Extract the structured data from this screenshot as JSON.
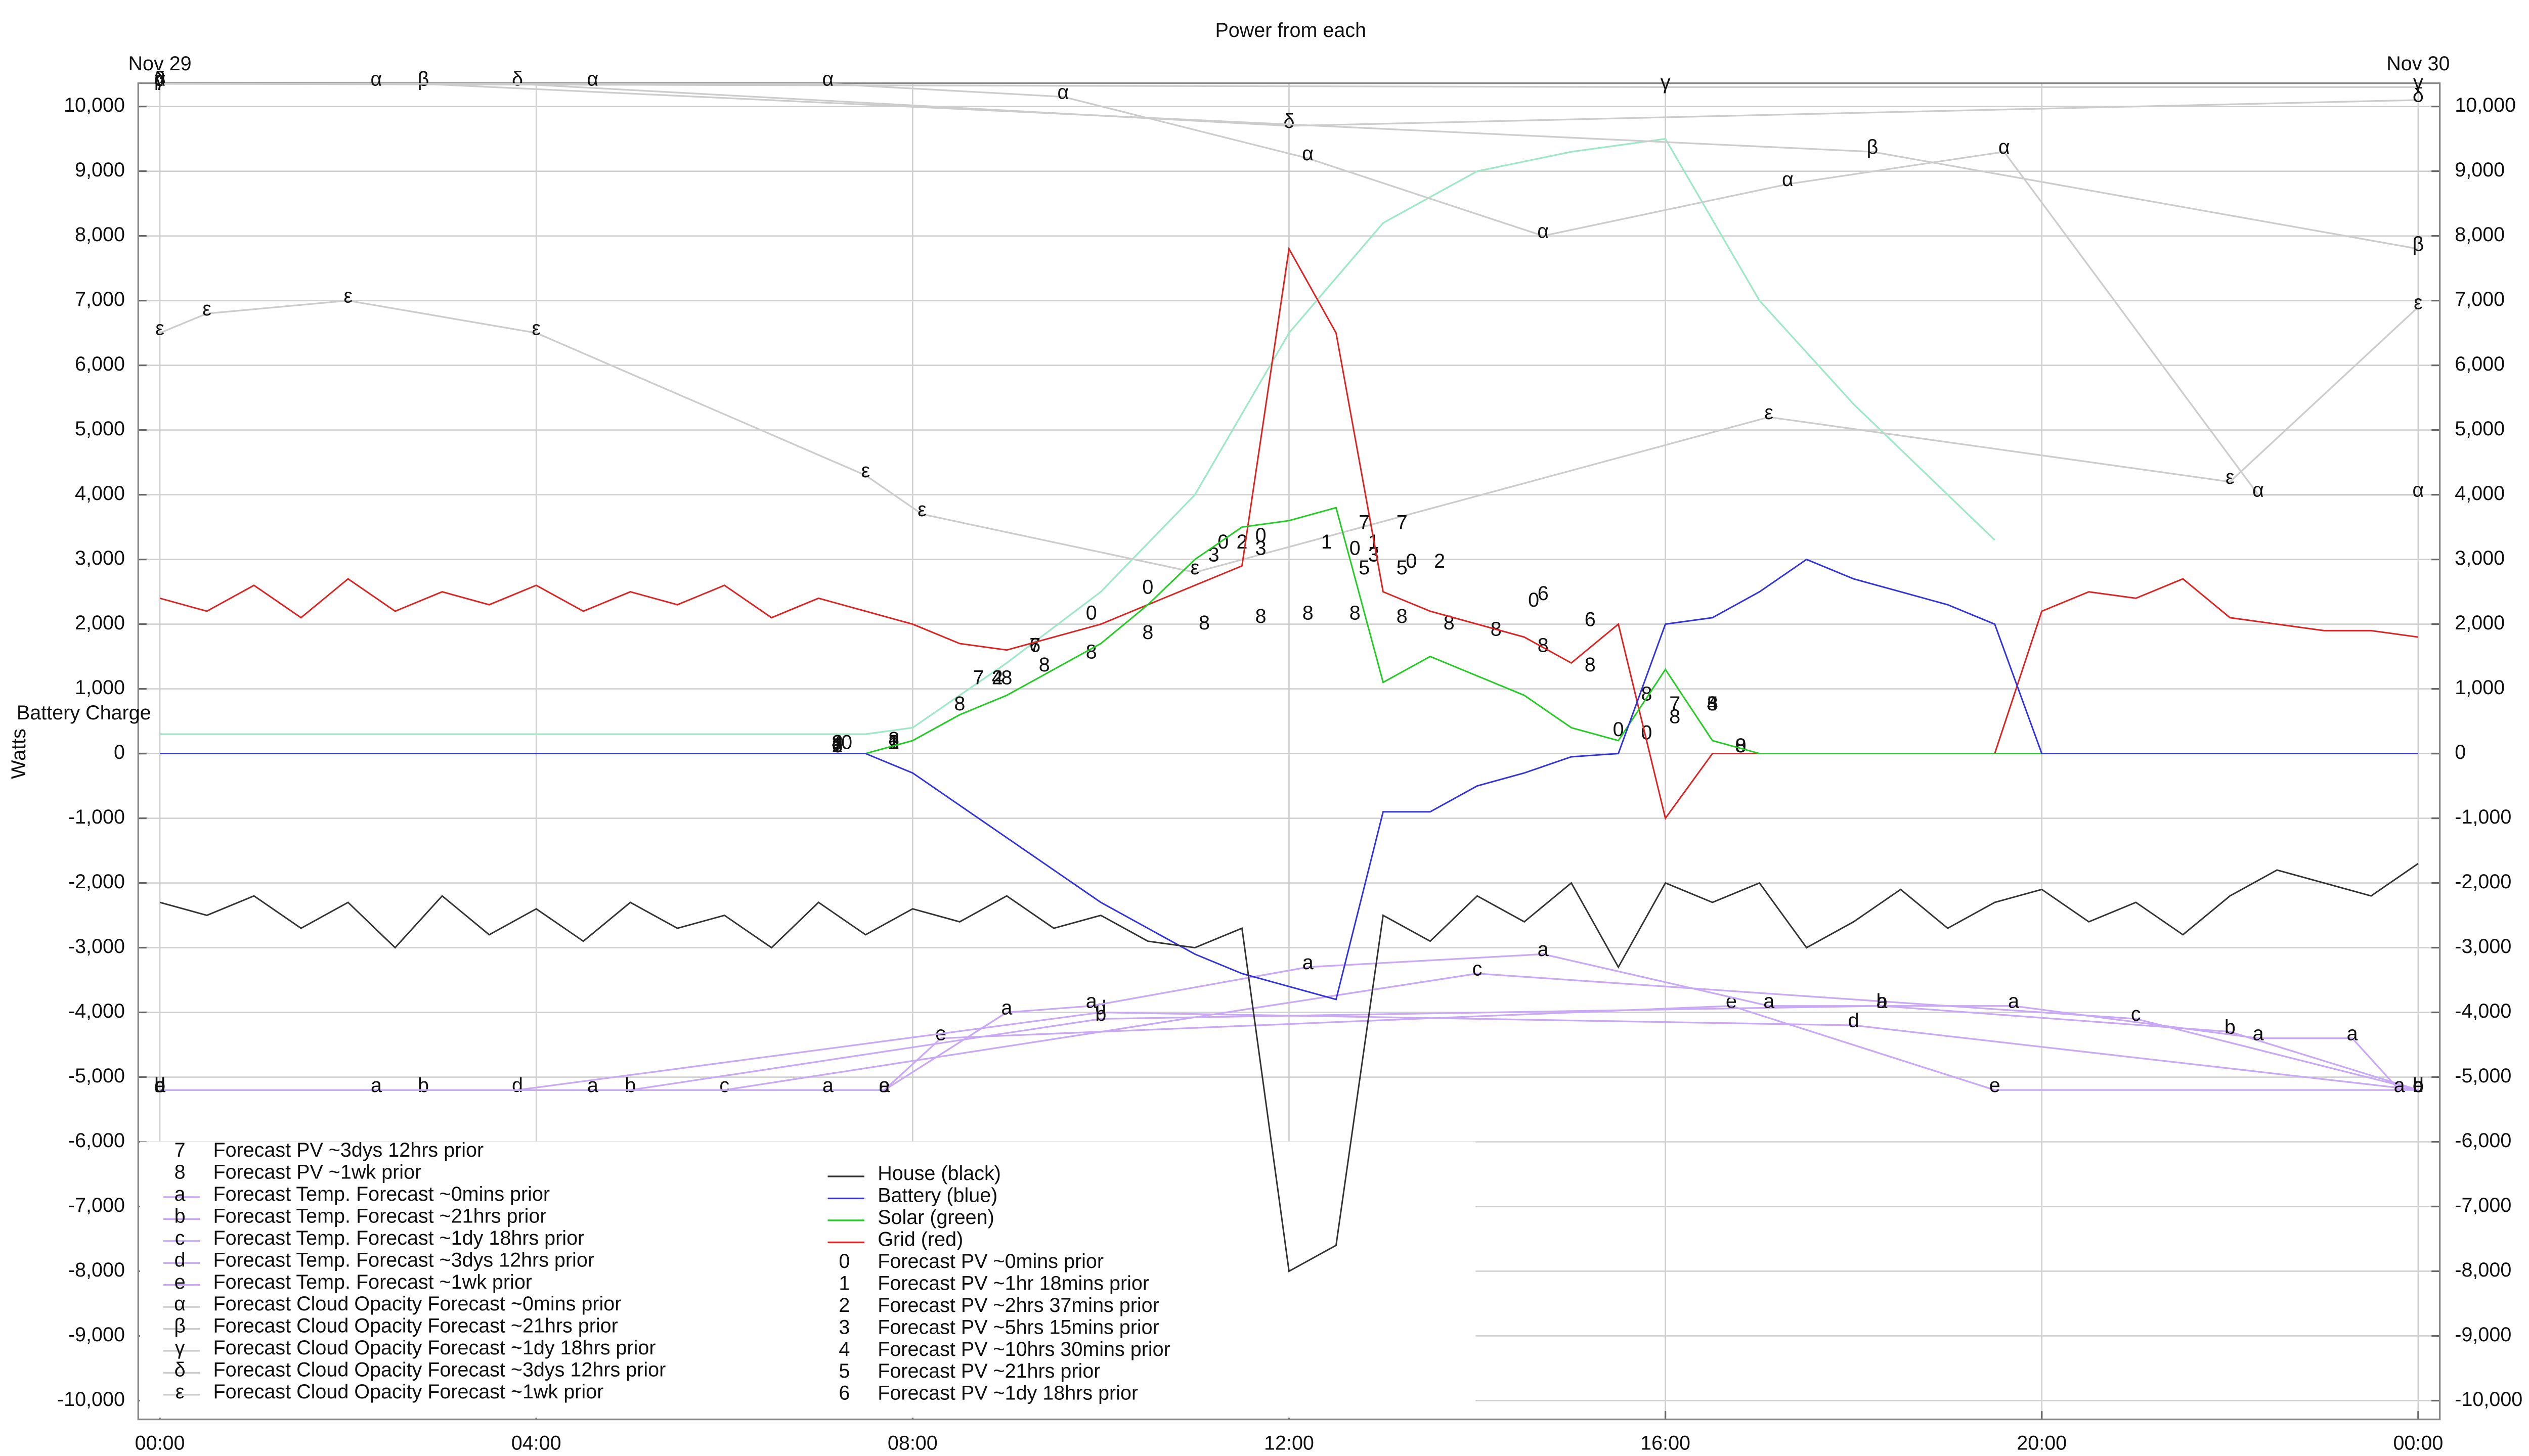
{
  "chart_data": {
    "type": "line",
    "title": "Power from each",
    "ylabel": "Watts",
    "annotations": [
      {
        "text": "Nov 29",
        "x": 0
      },
      {
        "text": "Nov 30",
        "x": 24
      }
    ],
    "xlim": [
      -0.23,
      24.23
    ],
    "xticks": [
      {
        "value": 0,
        "label": "00:00"
      },
      {
        "value": 4,
        "label": "04:00"
      },
      {
        "value": 8,
        "label": "08:00"
      },
      {
        "value": 12,
        "label": "12:00"
      },
      {
        "value": 16,
        "label": "16:00"
      },
      {
        "value": 20,
        "label": "20:00"
      },
      {
        "value": 24,
        "label": "00:00"
      }
    ],
    "ylim": [
      -10290,
      10360
    ],
    "yticks": [
      {
        "value": -10000,
        "label": "-10,000"
      },
      {
        "value": -9000,
        "label": "-9,000"
      },
      {
        "value": -8000,
        "label": "-8,000"
      },
      {
        "value": -7000,
        "label": "-7,000"
      },
      {
        "value": -6000,
        "label": "-6,000"
      },
      {
        "value": -5000,
        "label": "-5,000"
      },
      {
        "value": -4000,
        "label": "-4,000"
      },
      {
        "value": -3000,
        "label": "-3,000"
      },
      {
        "value": -2000,
        "label": "-2,000"
      },
      {
        "value": -1000,
        "label": "-1,000"
      },
      0,
      {
        "value": 1000,
        "label": "1,000"
      },
      {
        "value": 2000,
        "label": "2,000"
      },
      {
        "value": 3000,
        "label": "3,000"
      },
      {
        "value": 4000,
        "label": "4,000"
      },
      {
        "value": 5000,
        "label": "5,000"
      },
      {
        "value": 6000,
        "label": "6,000"
      },
      {
        "value": 7000,
        "label": "7,000"
      },
      {
        "value": 8000,
        "label": "8,000"
      },
      {
        "value": 9000,
        "label": "9,000"
      },
      {
        "value": 10000,
        "label": "10,000"
      }
    ],
    "grid": true,
    "legend": "lower left",
    "battery_charge": {
      "label": "Battery Charge",
      "color": "#9ee8c8",
      "x": [
        0,
        7.5,
        8,
        9,
        10,
        11,
        12,
        13,
        14,
        15,
        16,
        17,
        18,
        19,
        19.5
      ],
      "values": [
        300,
        300,
        400,
        1400,
        2500,
        4000,
        6500,
        8200,
        9000,
        9300,
        9500,
        7000,
        5400,
        4000,
        3300
      ]
    },
    "x": [
      0,
      0.5,
      1,
      1.5,
      2,
      2.5,
      3,
      3.5,
      4,
      4.5,
      5,
      5.5,
      6,
      6.5,
      7,
      7.5,
      8,
      8.5,
      9,
      9.5,
      10,
      10.5,
      11,
      11.5,
      12,
      12.5,
      13,
      13.5,
      14,
      14.5,
      15,
      15.5,
      16,
      16.5,
      17,
      17.5,
      18,
      18.5,
      19,
      19.5,
      20,
      20.5,
      21,
      21.5,
      22,
      22.5,
      23,
      23.5,
      24
    ],
    "series": [
      {
        "name": "House (black)",
        "color": "#333333",
        "values": [
          -2300,
          -2500,
          -2200,
          -2700,
          -2300,
          -3000,
          -2200,
          -2800,
          -2400,
          -2900,
          -2300,
          -2700,
          -2500,
          -3000,
          -2300,
          -2800,
          -2400,
          -2600,
          -2200,
          -2700,
          -2500,
          -2900,
          -3000,
          -2700,
          -8000,
          -7600,
          -2500,
          -2900,
          -2200,
          -2600,
          -2000,
          -3300,
          -2000,
          -2300,
          -2000,
          -3000,
          -2600,
          -2100,
          -2700,
          -2300,
          -2100,
          -2600,
          -2300,
          -2800,
          -2200,
          -1800,
          -2000,
          -2200,
          -1700
        ]
      },
      {
        "name": "Battery (blue)",
        "color": "#3333dd",
        "values": [
          0,
          0,
          0,
          0,
          0,
          0,
          0,
          0,
          0,
          0,
          0,
          0,
          0,
          0,
          0,
          0,
          -300,
          -800,
          -1300,
          -1800,
          -2300,
          -2700,
          -3100,
          -3400,
          -3600,
          -3800,
          -900,
          -900,
          -500,
          -300,
          -50,
          0,
          2000,
          2100,
          2500,
          3000,
          2700,
          2500,
          2300,
          2000,
          0,
          0,
          0,
          0,
          0,
          0,
          0,
          0,
          0
        ]
      },
      {
        "name": "Solar (green)",
        "color": "#22cc22",
        "values": [
          0,
          0,
          0,
          0,
          0,
          0,
          0,
          0,
          0,
          0,
          0,
          0,
          0,
          0,
          0,
          0,
          200,
          600,
          900,
          1300,
          1700,
          2300,
          3000,
          3500,
          3600,
          3800,
          1100,
          1500,
          1200,
          900,
          400,
          200,
          1300,
          200,
          0,
          0,
          0,
          0,
          0,
          0,
          0,
          0,
          0,
          0,
          0,
          0,
          0,
          0,
          0
        ]
      },
      {
        "name": "Grid (red)",
        "color": "#dd2222",
        "values": [
          2400,
          2200,
          2600,
          2100,
          2700,
          2200,
          2500,
          2300,
          2600,
          2200,
          2500,
          2300,
          2600,
          2100,
          2400,
          2200,
          2000,
          1700,
          1600,
          1800,
          2000,
          2300,
          2600,
          2900,
          7800,
          6500,
          2500,
          2200,
          2000,
          1800,
          1400,
          2000,
          -1000,
          0,
          0,
          0,
          0,
          0,
          0,
          0,
          2200,
          2500,
          2400,
          2700,
          2100,
          2000,
          1900,
          1900,
          1800
        ]
      },
      {
        "name": "Forecast PV ~0mins prior",
        "symbol": "0",
        "x": [
          7.3,
          9.9,
          10.5,
          11.3,
          11.7,
          12.7,
          13.3,
          14.6,
          15.5,
          15.8,
          16.8
        ],
        "values": [
          100,
          2100,
          2500,
          3200,
          3300,
          3100,
          2900,
          2300,
          300,
          250,
          50
        ]
      },
      {
        "name": "Forecast PV ~1hr 18mins prior",
        "symbol": "1",
        "x": [
          7.2,
          7.8,
          12.4,
          12.9
        ],
        "values": [
          50,
          100,
          3200,
          3200
        ]
      },
      {
        "name": "Forecast PV ~2hrs 37mins prior",
        "symbol": "2",
        "x": [
          7.2,
          7.8,
          8.9,
          11.5,
          13.6
        ],
        "values": [
          50,
          100,
          1100,
          3200,
          2900
        ]
      },
      {
        "name": "Forecast PV ~5hrs 15mins prior",
        "symbol": "3",
        "x": [
          7.2,
          11.2,
          11.7,
          12.9,
          16.5
        ],
        "values": [
          100,
          3000,
          3100,
          3000,
          700
        ]
      },
      {
        "name": "Forecast PV ~10hrs 30mins prior",
        "symbol": "4",
        "x": [
          7.2,
          8.9,
          16.5
        ],
        "values": [
          100,
          1100,
          700
        ]
      },
      {
        "name": "Forecast PV ~21hrs prior",
        "symbol": "5",
        "x": [
          7.8,
          12.8,
          13.2,
          16.5
        ],
        "values": [
          100,
          2800,
          2800,
          700
        ]
      },
      {
        "name": "Forecast PV ~1dy 18hrs prior",
        "symbol": "6",
        "x": [
          7.2,
          9.3,
          14.7,
          15.2
        ],
        "values": [
          50,
          1600,
          2400,
          2000
        ]
      },
      {
        "name": "Forecast PV ~3dys 12hrs prior",
        "symbol": "7",
        "x": [
          7.2,
          8.7,
          9.3,
          12.8,
          13.2,
          16.1
        ],
        "values": [
          50,
          1100,
          1600,
          3500,
          3500,
          700
        ]
      },
      {
        "name": "Forecast PV ~1wk prior",
        "symbol": "8",
        "x": [
          7.2,
          7.8,
          8.5,
          9,
          9.4,
          9.9,
          10.5,
          11.1,
          11.7,
          12.2,
          12.7,
          13.2,
          13.7,
          14.2,
          14.7,
          15.2,
          15.8,
          16.1,
          16.8
        ],
        "values": [
          100,
          150,
          700,
          1100,
          1300,
          1500,
          1800,
          1950,
          2050,
          2100,
          2100,
          2050,
          1950,
          1850,
          1600,
          1300,
          850,
          500,
          50
        ]
      },
      {
        "name": "Forecast Temp. Forecast ~0mins prior",
        "symbol": "a",
        "color": "#c9a8f5",
        "x": [
          0,
          2.3,
          4.6,
          7.1,
          7.7,
          9,
          9.9,
          12.2,
          14.7,
          17.1,
          18.3,
          19.7,
          22.3,
          23.3,
          23.8
        ],
        "values": [
          -5200,
          -5200,
          -5200,
          -5200,
          -5200,
          -4000,
          -3900,
          -3300,
          -3100,
          -3900,
          -3900,
          -3900,
          -4400,
          -4400,
          -5200
        ]
      },
      {
        "name": "Forecast Temp. Forecast ~21hrs prior",
        "symbol": "b",
        "color": "#c9a8f5",
        "x": [
          0,
          2.8,
          5,
          10,
          18.3,
          22,
          24
        ],
        "values": [
          -5200,
          -5200,
          -5200,
          -4100,
          -3900,
          -4300,
          -5200
        ]
      },
      {
        "name": "Forecast Temp. Forecast ~1dy 18hrs prior",
        "symbol": "c",
        "color": "#c9a8f5",
        "x": [
          0,
          6,
          14,
          21,
          24
        ],
        "values": [
          -5200,
          -5200,
          -3400,
          -4100,
          -5200
        ]
      },
      {
        "name": "Forecast Temp. Forecast ~3dys 12hrs prior",
        "symbol": "d",
        "color": "#c9a8f5",
        "x": [
          0,
          3.8,
          10,
          18,
          24
        ],
        "values": [
          -5200,
          -5200,
          -4000,
          -4200,
          -5200
        ]
      },
      {
        "name": "Forecast Temp. Forecast ~1wk prior",
        "symbol": "e",
        "color": "#c9a8f5",
        "x": [
          0,
          7.7,
          8.3,
          16.7,
          19.5,
          24
        ],
        "values": [
          -5200,
          -5200,
          -4400,
          -3900,
          -5200,
          -5200
        ]
      },
      {
        "name": "Forecast Cloud Opacity Forecast ~0mins prior",
        "symbol": "α",
        "color": "#cccccc",
        "x": [
          0,
          2.3,
          4.6,
          7.1,
          9.6,
          12.2,
          14.7,
          17.3,
          19.6,
          22.3,
          24
        ],
        "values": [
          10350,
          10350,
          10350,
          10350,
          10150,
          9200,
          8000,
          8800,
          9300,
          4000,
          4000
        ]
      },
      {
        "name": "Forecast Cloud Opacity Forecast ~21hrs prior",
        "symbol": "β",
        "color": "#cccccc",
        "x": [
          0,
          2.8,
          18.2,
          24
        ],
        "values": [
          10350,
          10350,
          9300,
          7800
        ]
      },
      {
        "name": "Forecast Cloud Opacity Forecast ~1dy 18hrs prior",
        "symbol": "γ",
        "color": "#cccccc",
        "x": [
          0,
          16,
          24
        ],
        "values": [
          10350,
          10300,
          10300
        ]
      },
      {
        "name": "Forecast Cloud Opacity Forecast ~3dys 12hrs prior",
        "symbol": "δ",
        "color": "#cccccc",
        "x": [
          0,
          3.8,
          12,
          24
        ],
        "values": [
          10350,
          10350,
          9700,
          10100
        ]
      },
      {
        "name": "Forecast Cloud Opacity Forecast ~1wk prior",
        "symbol": "ε",
        "color": "#cccccc",
        "x": [
          0,
          0.5,
          2,
          4,
          7.5,
          8.1,
          11,
          17.1,
          22,
          24
        ],
        "values": [
          6500,
          6800,
          7000,
          6500,
          4300,
          3700,
          2800,
          5200,
          4200,
          6900
        ]
      }
    ]
  }
}
